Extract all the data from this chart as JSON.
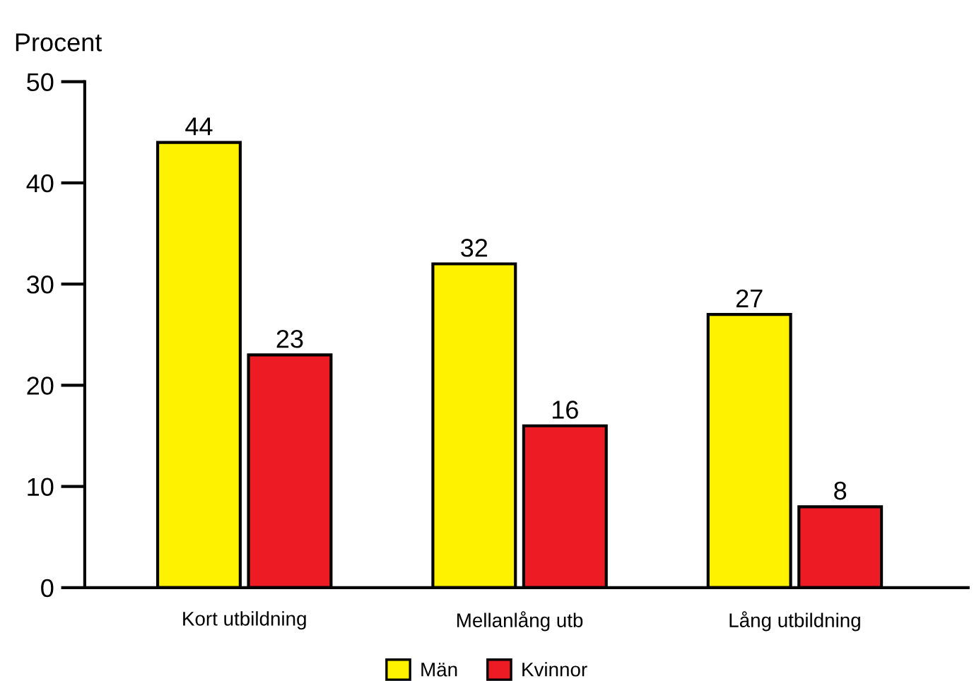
{
  "chart_data": {
    "type": "bar",
    "ylabel": "Procent",
    "categories": [
      "Kort utbildning",
      "Mellanlång utb",
      "Lång utbildning"
    ],
    "series": [
      {
        "name": "Män",
        "color": "#fff200",
        "values": [
          44,
          32,
          27
        ]
      },
      {
        "name": "Kvinnor",
        "color": "#ed1c24",
        "values": [
          23,
          16,
          8
        ]
      }
    ],
    "ylim": [
      0,
      50
    ],
    "yticks": [
      0,
      10,
      20,
      30,
      40,
      50
    ],
    "grid": false,
    "legend": "bottom",
    "data_labels": true
  }
}
